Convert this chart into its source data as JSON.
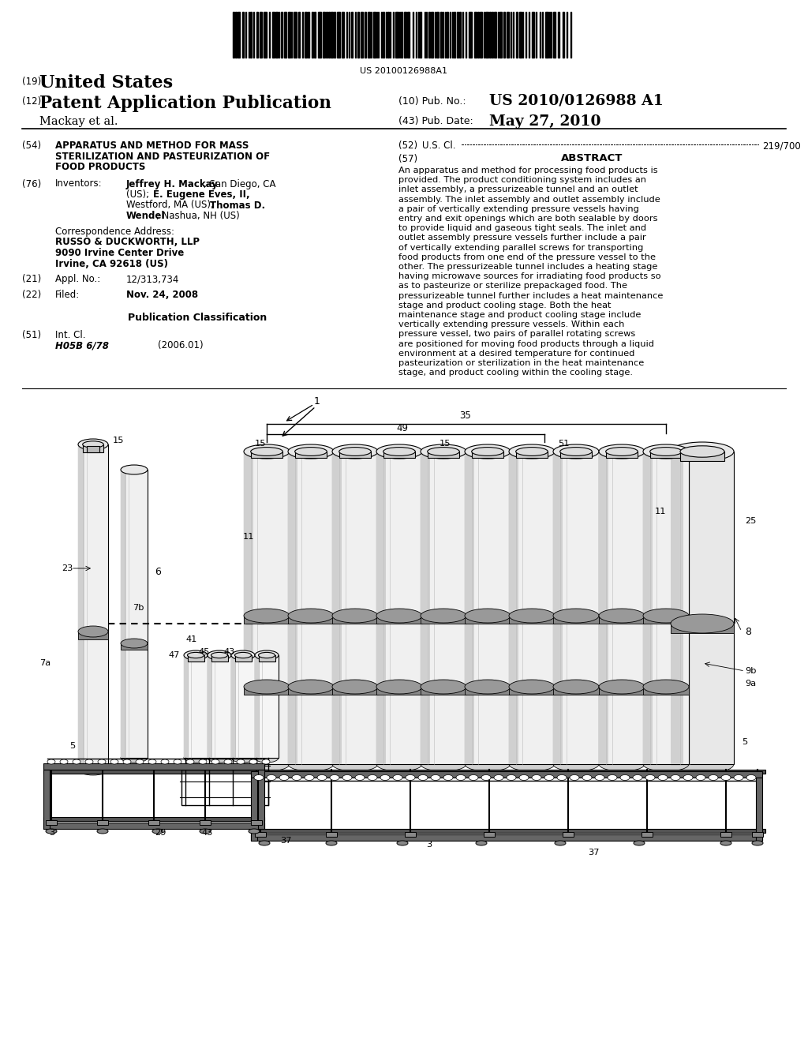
{
  "background_color": "#ffffff",
  "barcode_text": "US 20100126988A1",
  "header": {
    "country_label": "(19)",
    "country": "United States",
    "type_label": "(12)",
    "type": "Patent Application Publication",
    "pub_no_label": "(10) Pub. No.:",
    "pub_no": "US 2010/0126988 A1",
    "author": "Mackay et al.",
    "date_label": "(43) Pub. Date:",
    "date": "May 27, 2010"
  },
  "left_col": {
    "title_num": "(54)",
    "title_lines": [
      "APPARATUS AND METHOD FOR MASS",
      "STERILIZATION AND PASTEURIZATION OF",
      "FOOD PRODUCTS"
    ],
    "inventors_num": "(76)",
    "inventors_label": "Inventors:",
    "corr_label": "Correspondence Address:",
    "corr_name": "RUSSO & DUCKWORTH, LLP",
    "corr_addr1": "9090 Irvine Center Drive",
    "corr_addr2": "Irvine, CA 92618 (US)",
    "appl_num": "(21)",
    "appl_label": "Appl. No.:",
    "appl_val": "12/313,734",
    "filed_num": "(22)",
    "filed_label": "Filed:",
    "filed_val": "Nov. 24, 2008",
    "pub_class_title": "Publication Classification",
    "int_cl_num": "(51)",
    "int_cl_label": "Int. Cl.",
    "int_cl_val": "H05B 6/78",
    "int_cl_date": "(2006.01)"
  },
  "right_col": {
    "us_cl_num": "(52)",
    "us_cl_label": "U.S. Cl.",
    "us_cl_val": "219/700",
    "abstract_num": "(57)",
    "abstract_title": "ABSTRACT",
    "abstract_text": "An apparatus and method for processing food products is provided. The product conditioning system includes an inlet assembly, a pressurizeable tunnel and an outlet assembly. The inlet assembly and outlet assembly include a pair of vertically extending pressure vessels having entry and exit openings which are both sealable by doors to provide liquid and gaseous tight seals. The inlet and outlet assembly pressure vessels further include a pair of vertically extending parallel screws for transporting food products from one end of the pressure vessel to the other. The pressurizeable tunnel includes a heating stage having microwave sources for irradiating food products so as to pasteurize or sterilize prepackaged food. The pressurizeable tunnel further includes a heat maintenance stage and product cooling stage. Both the heat maintenance stage and product cooling stage include vertically extending pressure vessels. Within each pressure vessel, two pairs of parallel rotating screws are positioned for moving food products through a liquid environment at a desired temperature for continued pasteurization or sterilization in the heat maintenance stage, and product cooling within the cooling stage."
  }
}
